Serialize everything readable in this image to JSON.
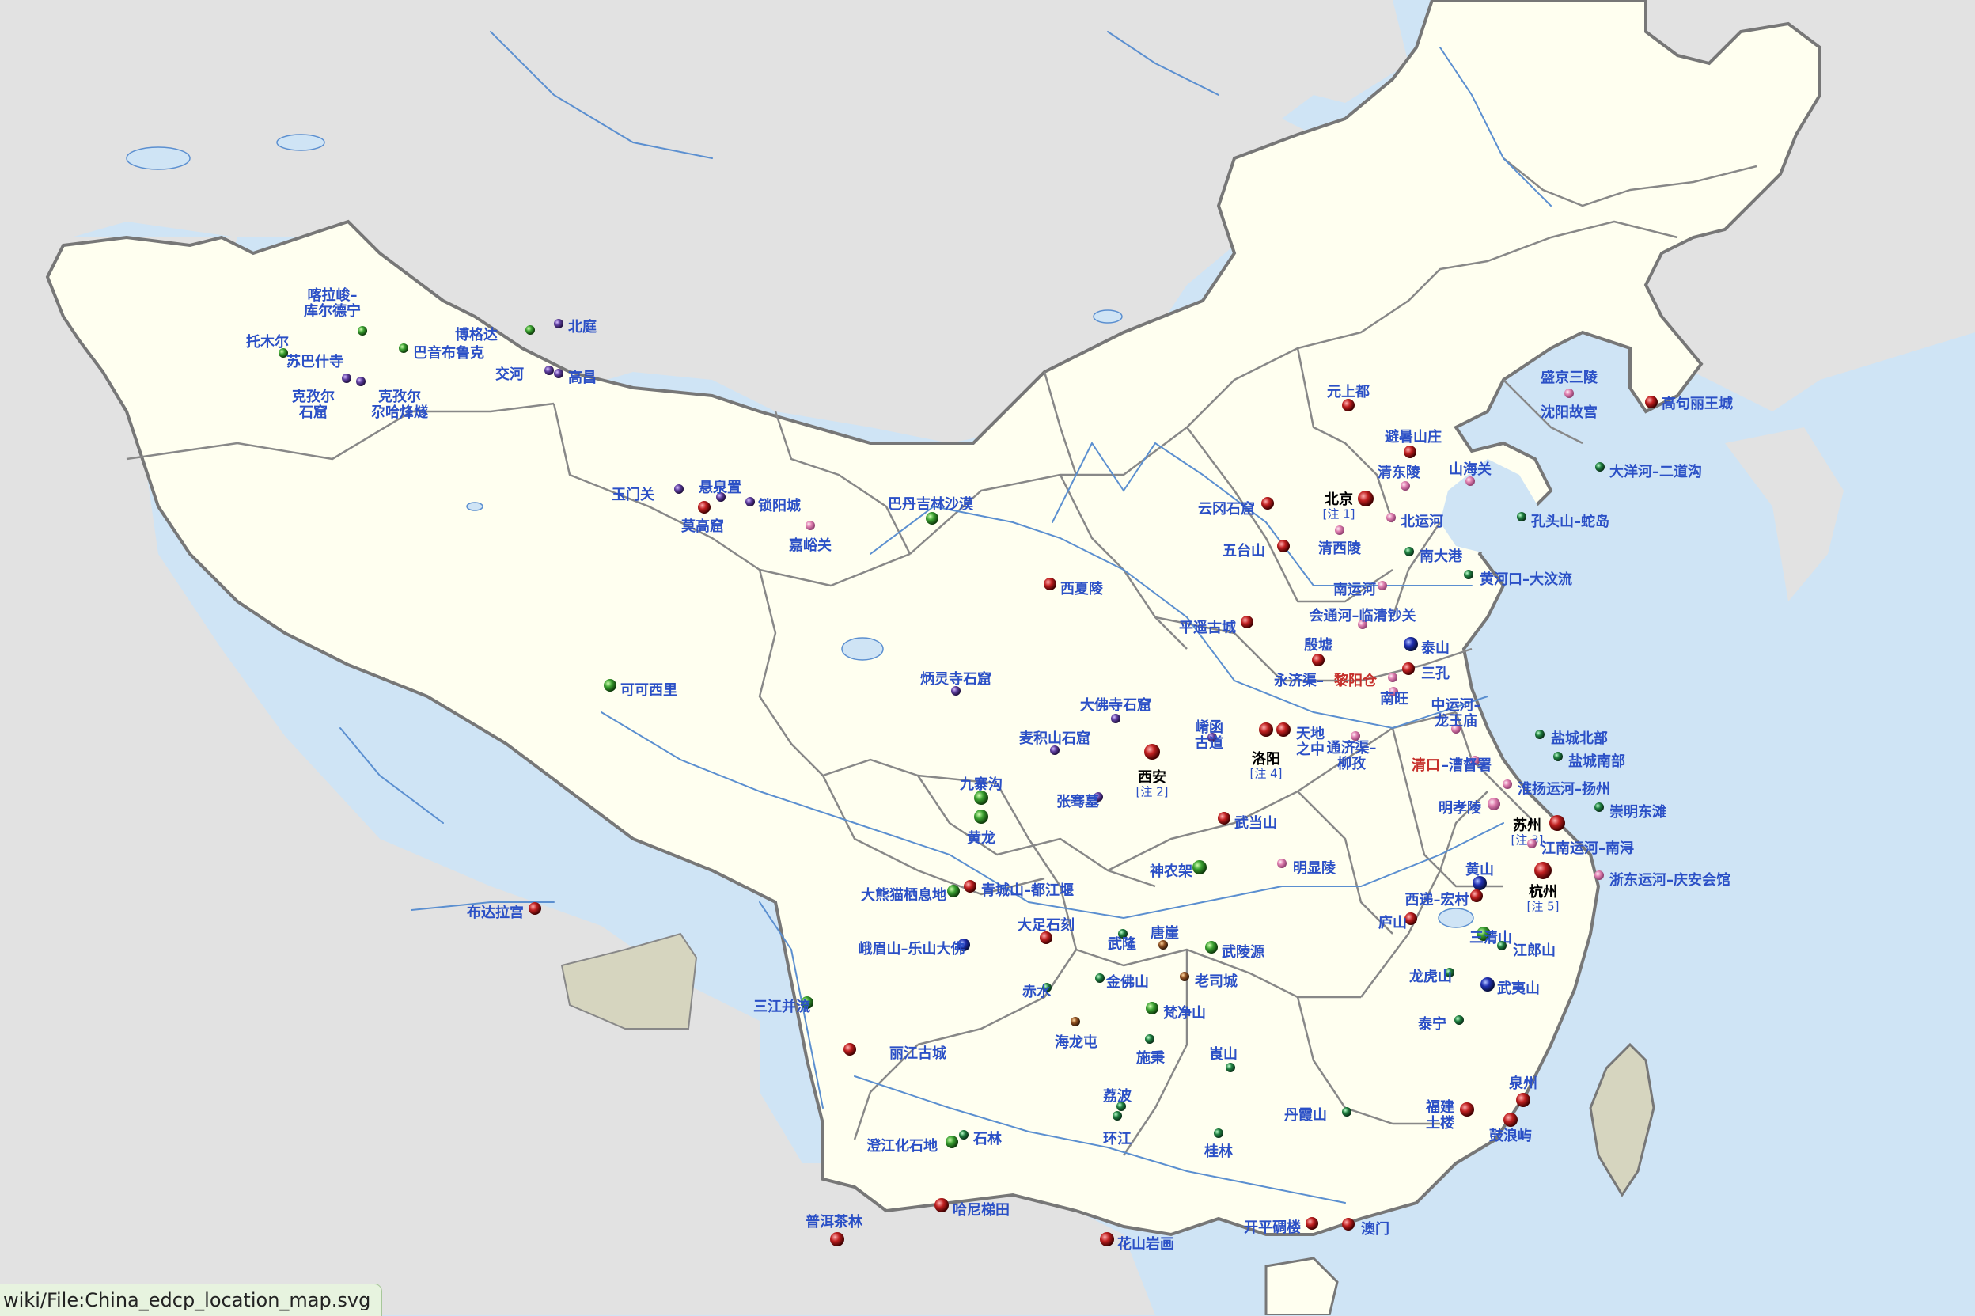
{
  "status_url": "wiki/File:China_edcp_location_map.svg",
  "colors": {
    "sea": "#cfe4f5",
    "land_other": "#e2e2e2",
    "china": "#fffff0",
    "disputed": "#d6d5bf",
    "border": "#777777",
    "province": "#888888",
    "river": "#5b8fd0",
    "cultural": "#c02020",
    "natural": "#3aa030",
    "mixed": "#2030b0",
    "tentative_purple": "#6040a0",
    "tentative_pink": "#e080b0",
    "tentative_green": "#208040",
    "tentative_brown": "#905020"
  },
  "sites": [
    {
      "name": "喀拉峻–",
      "name2": "库尔德宁",
      "marker": "natural"
    },
    {
      "name": "托木尔",
      "marker": "natural"
    },
    {
      "name": "苏巴什寺",
      "marker": "tentative_purple"
    },
    {
      "name": "巴音布鲁克",
      "marker": "natural"
    },
    {
      "name": "博格达",
      "marker": "natural"
    },
    {
      "name": "北庭",
      "marker": "tentative_purple"
    },
    {
      "name": "交河",
      "marker": "tentative_purple"
    },
    {
      "name": "高昌",
      "marker": "tentative_purple"
    },
    {
      "name": "克孜尔",
      "name2": "石窟",
      "marker": "tentative_purple"
    },
    {
      "name": "克孜尔",
      "name2": "尕哈烽燧",
      "marker": "tentative_purple"
    },
    {
      "name": "玉门关",
      "marker": "tentative_purple"
    },
    {
      "name": "悬泉置",
      "marker": "tentative_purple"
    },
    {
      "name": "锁阳城",
      "marker": "tentative_purple"
    },
    {
      "name": "莫高窟",
      "marker": "cultural"
    },
    {
      "name": "嘉峪关",
      "marker": "tentative_pink"
    },
    {
      "name": "巴丹吉林沙漠",
      "marker": "natural"
    },
    {
      "name": "元上都",
      "marker": "cultural"
    },
    {
      "name": "盛京三陵",
      "marker": "tentative_pink"
    },
    {
      "name": "沈阳故宫",
      "marker": "cultural"
    },
    {
      "name": "高句丽王城",
      "marker": "cultural"
    },
    {
      "name": "避暑山庄",
      "marker": "cultural"
    },
    {
      "name": "清东陵",
      "marker": "tentative_pink"
    },
    {
      "name": "山海关",
      "marker": "tentative_pink"
    },
    {
      "name": "大洋河–二道沟",
      "marker": "tentative_green"
    },
    {
      "name": "北京",
      "note": "[注 1]",
      "marker": "cultural"
    },
    {
      "name": "北运河",
      "marker": "tentative_pink"
    },
    {
      "name": "清西陵",
      "marker": "tentative_pink"
    },
    {
      "name": "云冈石窟",
      "marker": "cultural"
    },
    {
      "name": "五台山",
      "marker": "cultural"
    },
    {
      "name": "南大港",
      "marker": "tentative_green"
    },
    {
      "name": "孔头山–蛇岛",
      "marker": "tentative_green"
    },
    {
      "name": "黄河口–大汶流",
      "marker": "tentative_green"
    },
    {
      "name": "南运河",
      "marker": "tentative_pink"
    },
    {
      "name": "会通河–临清钞关",
      "marker": "tentative_pink"
    },
    {
      "name": "平遥古城",
      "marker": "cultural"
    },
    {
      "name": "殷墟",
      "marker": "cultural"
    },
    {
      "name": "泰山",
      "marker": "mixed"
    },
    {
      "name": "三孔",
      "marker": "cultural"
    },
    {
      "name": "永济渠–",
      "name_red": "黎阳仓",
      "marker": "tentative_pink"
    },
    {
      "name": "南旺",
      "marker": "tentative_pink"
    },
    {
      "name": "西夏陵",
      "marker": "cultural"
    },
    {
      "name": "炳灵寺石窟",
      "marker": "tentative_purple"
    },
    {
      "name": "大佛寺石窟",
      "marker": "tentative_purple"
    },
    {
      "name": "麦积山石窟",
      "marker": "tentative_purple"
    },
    {
      "name": "可可西里",
      "marker": "natural"
    },
    {
      "name": "西安",
      "note": "[注 2]",
      "marker": "cultural"
    },
    {
      "name": "崤函",
      "name2": "古道",
      "marker": "tentative_purple"
    },
    {
      "name": "洛阳",
      "note": "[注 4]",
      "marker": "cultural"
    },
    {
      "name": "天地",
      "name2": "之中",
      "marker": "cultural"
    },
    {
      "name": "通济渠–",
      "name2": "柳孜",
      "marker": "tentative_pink"
    },
    {
      "name": "中运河–",
      "name2": "龙王庙",
      "marker": "tentative_pink"
    },
    {
      "name": "清口–",
      "name_red_prefix": "清口",
      "name_suffix": "–漕督署",
      "marker": "tentative_pink"
    },
    {
      "name": "盐城北部",
      "marker": "tentative_green"
    },
    {
      "name": "盐城南部",
      "marker": "tentative_green"
    },
    {
      "name": "淮扬运河–扬州",
      "marker": "tentative_pink"
    },
    {
      "name": "明孝陵",
      "marker": "tentative_pink"
    },
    {
      "name": "崇明东滩",
      "marker": "tentative_green"
    },
    {
      "name": "苏州",
      "note": "[注 3]",
      "marker": "cultural"
    },
    {
      "name": "江南运河–南浔",
      "marker": "tentative_pink"
    },
    {
      "name": "杭州",
      "note": "[注 5]",
      "marker": "cultural"
    },
    {
      "name": "浙东运河–庆安会馆",
      "marker": "tentative_pink"
    },
    {
      "name": "九寨沟",
      "marker": "natural"
    },
    {
      "name": "黄龙",
      "marker": "natural"
    },
    {
      "name": "张骞墓",
      "marker": "tentative_purple"
    },
    {
      "name": "武当山",
      "marker": "cultural"
    },
    {
      "name": "神农架",
      "marker": "natural"
    },
    {
      "name": "明显陵",
      "marker": "tentative_pink"
    },
    {
      "name": "黄山",
      "marker": "mixed"
    },
    {
      "name": "西递–宏村",
      "marker": "cultural"
    },
    {
      "name": "庐山",
      "marker": "cultural"
    },
    {
      "name": "三清山",
      "marker": "natural"
    },
    {
      "name": "江郎山",
      "marker": "tentative_green"
    },
    {
      "name": "龙虎山",
      "marker": "tentative_green"
    },
    {
      "name": "武夷山",
      "marker": "mixed"
    },
    {
      "name": "泰宁",
      "marker": "tentative_green"
    },
    {
      "name": "大熊猫栖息地",
      "marker": "natural"
    },
    {
      "name": "青城山–都江堰",
      "marker": "cultural"
    },
    {
      "name": "峨眉山–乐山大佛",
      "marker": "mixed"
    },
    {
      "name": "大足石刻",
      "marker": "cultural"
    },
    {
      "name": "武隆",
      "marker": "tentative_green"
    },
    {
      "name": "唐崖",
      "marker": "tentative_brown"
    },
    {
      "name": "武陵源",
      "marker": "natural"
    },
    {
      "name": "赤水",
      "marker": "tentative_green"
    },
    {
      "name": "金佛山",
      "marker": "tentative_green"
    },
    {
      "name": "老司城",
      "marker": "tentative_brown"
    },
    {
      "name": "梵净山",
      "marker": "natural"
    },
    {
      "name": "海龙屯",
      "marker": "tentative_brown"
    },
    {
      "name": "施秉",
      "marker": "tentative_green"
    },
    {
      "name": "崀山",
      "marker": "tentative_green"
    },
    {
      "name": "布达拉宫",
      "marker": "cultural"
    },
    {
      "name": "三江并流",
      "marker": "natural"
    },
    {
      "name": "丽江古城",
      "marker": "cultural"
    },
    {
      "name": "荔波",
      "marker": "tentative_green"
    },
    {
      "name": "环江",
      "marker": "tentative_green"
    },
    {
      "name": "丹霞山",
      "marker": "tentative_green"
    },
    {
      "name": "桂林",
      "marker": "tentative_green"
    },
    {
      "name": "福建",
      "name2": "土楼",
      "marker": "cultural"
    },
    {
      "name": "泉州",
      "marker": "cultural"
    },
    {
      "name": "鼓浪屿",
      "marker": "cultural"
    },
    {
      "name": "石林",
      "marker": "tentative_green"
    },
    {
      "name": "澄江化石地",
      "marker": "natural"
    },
    {
      "name": "哈尼梯田",
      "marker": "cultural"
    },
    {
      "name": "普洱茶林",
      "marker": "cultural"
    },
    {
      "name": "花山岩画",
      "marker": "cultural"
    },
    {
      "name": "开平碉楼",
      "marker": "cultural"
    },
    {
      "name": "澳门",
      "marker": "cultural"
    }
  ]
}
